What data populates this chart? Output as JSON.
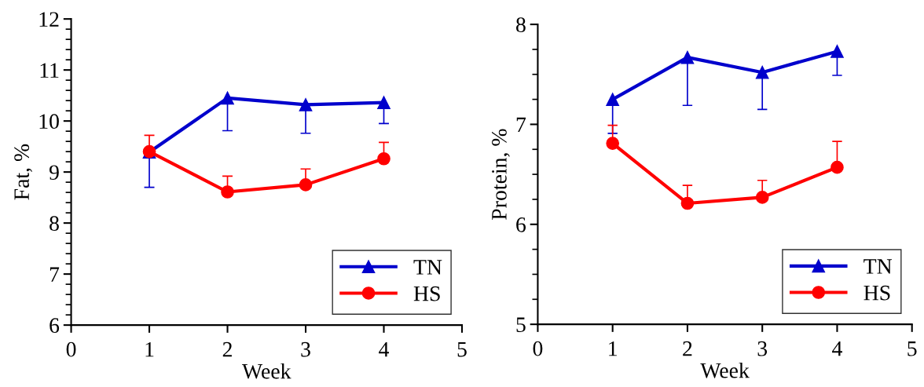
{
  "chart_data": [
    {
      "type": "line",
      "xlabel": "Week",
      "ylabel": "Fat, %",
      "x": [
        1,
        2,
        3,
        4
      ],
      "series": [
        {
          "name": "TN",
          "color": "#0000cc",
          "marker": "triangle",
          "values": [
            9.39,
            10.45,
            10.32,
            10.36
          ],
          "errors": [
            [
              8.7,
              9.39
            ],
            [
              9.81,
              10.45
            ],
            [
              9.76,
              10.32
            ],
            [
              9.95,
              10.36
            ]
          ]
        },
        {
          "name": "HS",
          "color": "#ff0000",
          "marker": "circle",
          "values": [
            9.4,
            8.61,
            8.75,
            9.26
          ],
          "errors": [
            [
              9.4,
              9.72
            ],
            [
              8.61,
              8.92
            ],
            [
              8.75,
              9.06
            ],
            [
              9.26,
              9.58
            ]
          ]
        }
      ],
      "xlim": [
        0,
        5
      ],
      "xticks": [
        0,
        1,
        2,
        3,
        4,
        5
      ],
      "ylim": [
        6,
        12
      ],
      "yticks": [
        6,
        {
          "value": 6.2,
          "label": null
        },
        {
          "value": 6.4,
          "label": null
        },
        {
          "value": 6.6,
          "label": null
        },
        {
          "value": 6.8,
          "label": null
        },
        7,
        {
          "value": 7.2,
          "label": null
        },
        {
          "value": 7.4,
          "label": null
        },
        {
          "value": 7.6,
          "label": null
        },
        {
          "value": 7.8,
          "label": null
        },
        8,
        {
          "value": 8.2,
          "label": null
        },
        {
          "value": 8.4,
          "label": null
        },
        {
          "value": 8.6,
          "label": null
        },
        {
          "value": 8.8,
          "label": null
        },
        9,
        {
          "value": 9.2,
          "label": null
        },
        {
          "value": 9.4,
          "label": null
        },
        {
          "value": 9.6,
          "label": null
        },
        {
          "value": 9.8,
          "label": null
        },
        10,
        {
          "value": 10.2,
          "label": null
        },
        {
          "value": 10.4,
          "label": null
        },
        {
          "value": 10.6,
          "label": null
        },
        {
          "value": 10.8,
          "label": null
        },
        11,
        {
          "value": 11.2,
          "label": null
        },
        {
          "value": 11.4,
          "label": null
        },
        {
          "value": 11.6,
          "label": null
        },
        {
          "value": 11.8,
          "label": null
        },
        12
      ],
      "grid": false,
      "legend": "bottom right"
    },
    {
      "type": "line",
      "xlabel": "Week",
      "ylabel": "Protein, %",
      "x": [
        1,
        2,
        3,
        4
      ],
      "series": [
        {
          "name": "TN",
          "color": "#0000cc",
          "marker": "triangle",
          "values": [
            7.25,
            7.67,
            7.52,
            7.73
          ],
          "errors": [
            [
              6.91,
              7.25
            ],
            [
              7.19,
              7.67
            ],
            [
              7.15,
              7.52
            ],
            [
              7.49,
              7.73
            ]
          ]
        },
        {
          "name": "HS",
          "color": "#ff0000",
          "marker": "circle",
          "values": [
            6.81,
            6.21,
            6.27,
            6.57
          ],
          "errors": [
            [
              6.81,
              6.99
            ],
            [
              6.21,
              6.39
            ],
            [
              6.27,
              6.44
            ],
            [
              6.57,
              6.83
            ]
          ]
        }
      ],
      "xlim": [
        0,
        5
      ],
      "xticks": [
        0,
        1,
        2,
        3,
        4,
        5
      ],
      "ylim": [
        5,
        8
      ],
      "yticks": [
        5,
        {
          "value": 5.25,
          "label": null
        },
        {
          "value": 5.5,
          "label": null
        },
        {
          "value": 5.75,
          "label": null
        },
        6,
        {
          "value": 6.25,
          "label": null
        },
        {
          "value": 6.5,
          "label": null
        },
        {
          "value": 6.75,
          "label": null
        },
        7,
        {
          "value": 7.25,
          "label": null
        },
        {
          "value": 7.5,
          "label": null
        },
        {
          "value": 7.75,
          "label": null
        },
        8
      ],
      "grid": false,
      "legend": "bottom right"
    }
  ]
}
